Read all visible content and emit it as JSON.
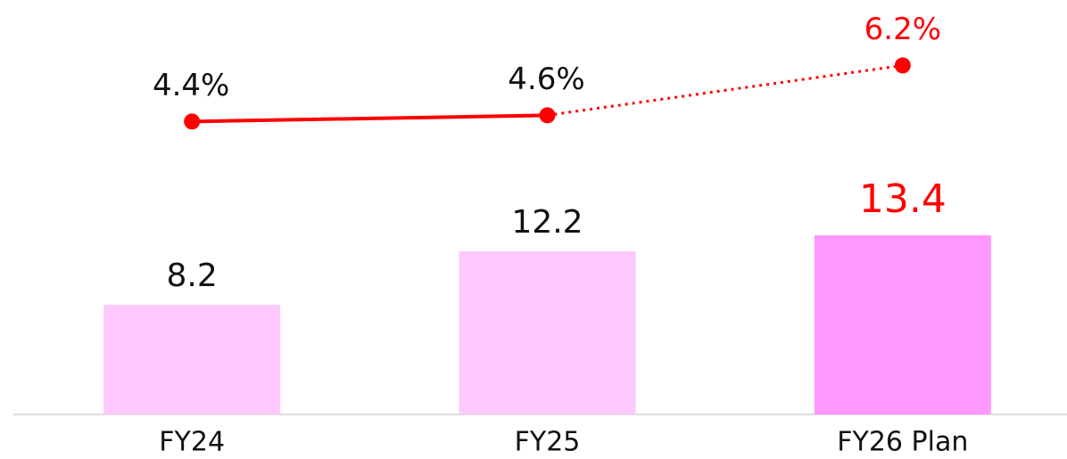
{
  "chart_data": {
    "type": "bar",
    "categories": [
      "FY24",
      "FY25",
      "FY26 Plan"
    ],
    "ylim": [
      0,
      31
    ],
    "y2lim": [
      -5,
      8.3
    ],
    "series": [
      {
        "type": "bar",
        "values": [
          8.2,
          12.2,
          13.4
        ],
        "colors": [
          "#fdc9fd",
          "#fdc9fd",
          "#ff99ff"
        ],
        "label_colors": [
          "#111111",
          "#111111",
          "#ff0000"
        ]
      },
      {
        "type": "line",
        "axis": "y2",
        "color": "#ff0000",
        "values": [
          4.4,
          4.6,
          6.2
        ],
        "value_labels": [
          "4.4%",
          "4.6%",
          "6.2%"
        ],
        "label_colors": [
          "#111111",
          "#111111",
          "#ff0000"
        ],
        "segment_styles": [
          "solid",
          "dotted"
        ]
      }
    ]
  }
}
